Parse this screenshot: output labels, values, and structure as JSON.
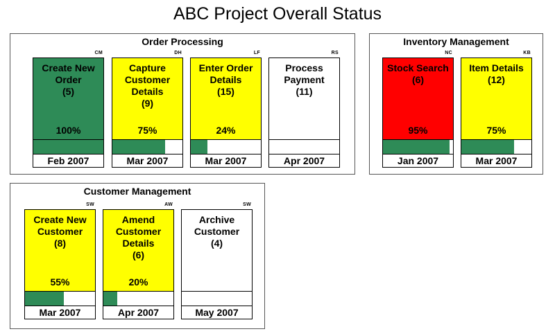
{
  "title": "ABC Project Overall Status",
  "colors": {
    "complete": "#2e8b57",
    "in_progress": "#ffff00",
    "at_risk": "#ff0000",
    "not_started": "#ffffff",
    "progress_bar": "#2e8b57"
  },
  "groups": [
    {
      "title": "Order Processing",
      "cards": [
        {
          "owner": "CM",
          "name": "Create New Order",
          "count": "(5)",
          "percent": "100%",
          "progress": 1.0,
          "date": "Feb 2007",
          "status": "complete"
        },
        {
          "owner": "DH",
          "name": "Capture Customer Details",
          "count": "(9)",
          "percent": "75%",
          "progress": 0.75,
          "date": "Mar 2007",
          "status": "in_progress"
        },
        {
          "owner": "LF",
          "name": "Enter Order Details",
          "count": "(15)",
          "percent": "24%",
          "progress": 0.24,
          "date": "Mar 2007",
          "status": "in_progress"
        },
        {
          "owner": "RS",
          "name": "Process Payment",
          "count": "(11)",
          "percent": "",
          "progress": 0,
          "date": "Apr 2007",
          "status": "not_started"
        }
      ]
    },
    {
      "title": "Inventory Management",
      "cards": [
        {
          "owner": "NC",
          "name": "Stock Search",
          "count": "(6)",
          "percent": "95%",
          "progress": 0.95,
          "date": "Jan 2007",
          "status": "at_risk"
        },
        {
          "owner": "KB",
          "name": "Item Details",
          "count": "(12)",
          "percent": "75%",
          "progress": 0.75,
          "date": "Mar 2007",
          "status": "in_progress"
        }
      ]
    },
    {
      "title": "Customer Management",
      "cards": [
        {
          "owner": "SW",
          "name": "Create New Customer",
          "count": "(8)",
          "percent": "55%",
          "progress": 0.55,
          "date": "Mar 2007",
          "status": "in_progress"
        },
        {
          "owner": "AW",
          "name": "Amend Customer Details",
          "count": "(6)",
          "percent": "20%",
          "progress": 0.2,
          "date": "Apr 2007",
          "status": "in_progress"
        },
        {
          "owner": "SW",
          "name": "Archive Customer",
          "count": "(4)",
          "percent": "",
          "progress": 0,
          "date": "May 2007",
          "status": "not_started"
        }
      ]
    }
  ]
}
